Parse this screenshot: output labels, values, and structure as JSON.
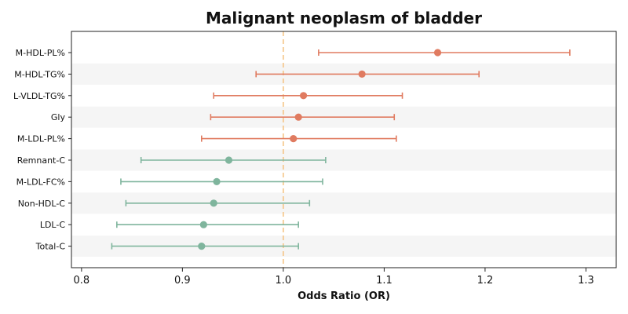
{
  "chart_data": {
    "type": "forest",
    "title": "Malignant neoplasm of bladder",
    "xlabel": "Odds Ratio (OR)",
    "xlim": [
      0.79,
      1.33
    ],
    "xticks": [
      "0.8",
      "0.9",
      "1.0",
      "1.1",
      "1.2",
      "1.3"
    ],
    "reference_line": 1.0,
    "grid": false,
    "alternating_row_bands": true,
    "colors": {
      "positive": "#e07b60",
      "negative": "#7fb59d",
      "reference": "#f5c27f",
      "band": "#f5f5f5"
    },
    "rows": [
      {
        "label": "M-HDL-PL%",
        "or": 1.153,
        "lower": 1.035,
        "upper": 1.284
      },
      {
        "label": "M-HDL-TG%",
        "or": 1.078,
        "lower": 0.973,
        "upper": 1.194
      },
      {
        "label": "L-VLDL-TG%",
        "or": 1.02,
        "lower": 0.931,
        "upper": 1.118
      },
      {
        "label": "Gly",
        "or": 1.015,
        "lower": 0.928,
        "upper": 1.11
      },
      {
        "label": "M-LDL-PL%",
        "or": 1.01,
        "lower": 0.919,
        "upper": 1.112
      },
      {
        "label": "Remnant-C",
        "or": 0.946,
        "lower": 0.859,
        "upper": 1.042
      },
      {
        "label": "M-LDL-FC%",
        "or": 0.934,
        "lower": 0.839,
        "upper": 1.039
      },
      {
        "label": "Non-HDL-C",
        "or": 0.931,
        "lower": 0.844,
        "upper": 1.026
      },
      {
        "label": "LDL-C",
        "or": 0.921,
        "lower": 0.835,
        "upper": 1.015
      },
      {
        "label": "Total-C",
        "or": 0.919,
        "lower": 0.83,
        "upper": 1.015
      }
    ]
  }
}
